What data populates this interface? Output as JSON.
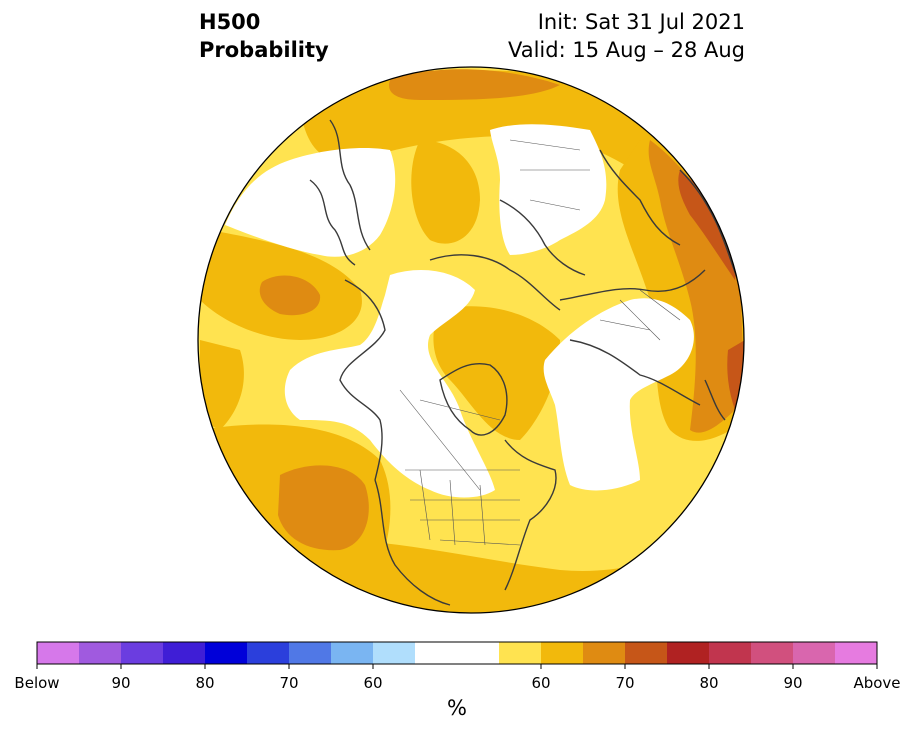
{
  "header": {
    "variable": "H500",
    "product": "Probability",
    "init": "Init: Sat 31 Jul 2021",
    "valid": "Valid: 15 Aug – 28 Aug"
  },
  "colorbar": {
    "unit": "%",
    "tick_labels": [
      "Below",
      "90",
      "80",
      "70",
      "60",
      "60",
      "70",
      "80",
      "90",
      "Above"
    ],
    "colors": [
      "#d678ea",
      "#a05adf",
      "#6b3de0",
      "#3f1ed6",
      "#0000d9",
      "#2b3fdc",
      "#5078e6",
      "#7ab5f2",
      "#b0defc",
      "#ffffff",
      "#ffe350",
      "#f2b90c",
      "#df8b12",
      "#c65618",
      "#b02222",
      "#c1354e",
      "#d1507e",
      "#d966ae",
      "#e67be0"
    ]
  },
  "map": {
    "projection": "north-polar-stereographic",
    "fill_levels": {
      "neutral": "#ffffff",
      "above_50_60": "#ffe350",
      "above_60_65": "#f2b90c",
      "above_65_70": "#df8b12",
      "above_70_75": "#c65618"
    }
  }
}
